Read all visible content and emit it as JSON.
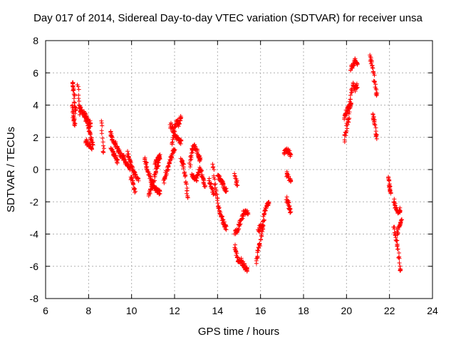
{
  "chart_data": {
    "type": "scatter",
    "title": "Day 017 of 2014, Sidereal Day-to-day VTEC variation (SDTVAR) for receiver unsa",
    "xlabel": "GPS time / hours",
    "ylabel": "SDTVAR / TECUs",
    "xlim": [
      6,
      24
    ],
    "ylim": [
      -8,
      8
    ],
    "x_ticks": [
      6,
      8,
      10,
      12,
      14,
      16,
      18,
      20,
      22,
      24
    ],
    "y_ticks": [
      -8,
      -6,
      -4,
      -2,
      0,
      2,
      4,
      6,
      8
    ],
    "grid": true,
    "marker": "plus",
    "color": "#ff0000",
    "segments": [
      {
        "x": [
          7.25,
          7.3,
          7.35,
          7.4
        ],
        "y": [
          5.4,
          5.0,
          4.0,
          3.6
        ]
      },
      {
        "x": [
          7.25,
          7.3,
          7.35
        ],
        "y": [
          3.9,
          3.2,
          2.8
        ]
      },
      {
        "x": [
          7.5,
          7.6
        ],
        "y": [
          5.3,
          3.5
        ]
      },
      {
        "x": [
          7.6,
          7.7,
          7.8,
          7.9,
          8.0,
          8.1
        ],
        "y": [
          3.8,
          3.6,
          3.3,
          3.1,
          3.0,
          2.8
        ]
      },
      {
        "x": [
          7.8,
          7.9,
          8.0,
          8.1,
          8.2
        ],
        "y": [
          3.6,
          3.3,
          2.6,
          2.0,
          1.6
        ]
      },
      {
        "x": [
          7.85,
          7.95,
          8.05,
          8.15
        ],
        "y": [
          1.8,
          1.6,
          1.5,
          1.4
        ]
      },
      {
        "x": [
          8.6,
          8.7
        ],
        "y": [
          3.0,
          1.2
        ]
      },
      {
        "x": [
          9.0,
          9.1,
          9.2,
          9.3,
          9.4,
          9.5,
          9.6
        ],
        "y": [
          2.3,
          2.0,
          1.7,
          1.4,
          1.2,
          0.9,
          0.7
        ]
      },
      {
        "x": [
          9.05,
          9.15,
          9.25,
          9.35
        ],
        "y": [
          1.3,
          1.0,
          0.8,
          0.5
        ]
      },
      {
        "x": [
          9.6,
          9.7,
          9.8,
          9.9
        ],
        "y": [
          0.8,
          0.5,
          0.3,
          0.0
        ]
      },
      {
        "x": [
          9.8,
          9.9,
          10.0,
          10.1,
          10.2,
          10.3
        ],
        "y": [
          1.0,
          0.6,
          0.2,
          -0.2,
          -0.4,
          -0.6
        ]
      },
      {
        "x": [
          9.95,
          10.05,
          10.15
        ],
        "y": [
          -0.4,
          -0.8,
          -1.3
        ]
      },
      {
        "x": [
          10.6,
          10.7,
          10.8,
          10.9,
          11.0,
          11.1,
          11.2,
          11.3
        ],
        "y": [
          0.7,
          0.2,
          -0.3,
          -0.7,
          -1.0,
          -1.2,
          -1.3,
          -1.4
        ]
      },
      {
        "x": [
          10.8,
          10.9,
          11.0,
          11.1,
          11.2,
          11.3
        ],
        "y": [
          -1.5,
          -1.2,
          -0.8,
          -0.3,
          0.2,
          0.7
        ]
      },
      {
        "x": [
          11.1,
          11.2,
          11.3
        ],
        "y": [
          0.4,
          0.6,
          0.8
        ]
      },
      {
        "x": [
          11.5,
          11.6,
          11.7,
          11.8,
          11.9,
          12.0
        ],
        "y": [
          -0.8,
          -0.3,
          0.2,
          0.6,
          1.0,
          1.2
        ]
      },
      {
        "x": [
          11.8,
          11.9,
          12.0,
          12.1,
          12.2,
          12.3
        ],
        "y": [
          2.8,
          2.5,
          2.2,
          2.0,
          1.8,
          1.7
        ]
      },
      {
        "x": [
          11.9,
          12.0,
          12.1,
          12.2,
          12.3
        ],
        "y": [
          1.5,
          2.5,
          3.0,
          2.8,
          3.3
        ]
      },
      {
        "x": [
          12.3,
          12.4,
          12.5,
          12.6
        ],
        "y": [
          0.7,
          0.3,
          -0.5,
          -1.7
        ]
      },
      {
        "x": [
          12.7,
          12.8,
          12.9,
          13.0,
          13.1,
          13.2
        ],
        "y": [
          0.2,
          1.0,
          1.5,
          1.3,
          0.9,
          0.6
        ]
      },
      {
        "x": [
          12.8,
          12.9,
          13.0,
          13.1,
          13.2,
          13.3,
          13.4
        ],
        "y": [
          -0.3,
          -0.5,
          -0.6,
          -0.2,
          0.0,
          -0.4,
          -1.0
        ]
      },
      {
        "x": [
          13.6,
          13.7,
          13.8
        ],
        "y": [
          -0.6,
          -1.0,
          -1.5
        ]
      },
      {
        "x": [
          13.8,
          13.9,
          14.0,
          14.1,
          14.2,
          14.3,
          14.4
        ],
        "y": [
          0.4,
          -1.2,
          -2.0,
          -2.6,
          -3.0,
          -3.4,
          -3.6
        ]
      },
      {
        "x": [
          14.0,
          14.1,
          14.2,
          14.3,
          14.4
        ],
        "y": [
          -0.3,
          -0.6,
          -0.8,
          -1.0,
          -1.3
        ]
      },
      {
        "x": [
          14.8,
          14.9,
          15.0,
          15.1,
          15.2,
          15.3,
          15.4
        ],
        "y": [
          -3.9,
          -3.8,
          -3.5,
          -3.0,
          -2.7,
          -2.6,
          -2.7
        ]
      },
      {
        "x": [
          14.8,
          14.9
        ],
        "y": [
          -0.3,
          -0.9
        ]
      },
      {
        "x": [
          14.8,
          14.9,
          15.0,
          15.1,
          15.2,
          15.3,
          15.4
        ],
        "y": [
          -4.8,
          -5.3,
          -5.8,
          -5.6,
          -5.9,
          -6.1,
          -6.2
        ]
      },
      {
        "x": [
          15.8,
          15.9,
          16.0,
          16.1,
          16.2,
          16.3,
          16.4
        ],
        "y": [
          -5.7,
          -5.0,
          -4.4,
          -3.4,
          -2.6,
          -2.2,
          -2.0
        ]
      },
      {
        "x": [
          15.9,
          16.0,
          16.1
        ],
        "y": [
          -3.8,
          -3.5,
          -3.6
        ]
      },
      {
        "x": [
          17.1,
          17.2,
          17.3,
          17.4
        ],
        "y": [
          1.0,
          1.2,
          1.1,
          0.9
        ]
      },
      {
        "x": [
          17.2,
          17.3,
          17.4
        ],
        "y": [
          -0.2,
          -0.5,
          -0.7
        ]
      },
      {
        "x": [
          17.2,
          17.3,
          17.4
        ],
        "y": [
          -1.8,
          -2.2,
          -2.6
        ]
      },
      {
        "x": [
          19.9,
          20.0,
          20.1,
          20.2,
          20.3,
          20.4,
          20.5
        ],
        "y": [
          1.8,
          2.6,
          3.3,
          4.5,
          5.3,
          5.0,
          5.2
        ]
      },
      {
        "x": [
          19.9,
          20.0,
          20.1,
          20.2
        ],
        "y": [
          3.2,
          3.6,
          3.8,
          4.2
        ]
      },
      {
        "x": [
          20.2,
          20.3,
          20.4,
          20.5
        ],
        "y": [
          6.2,
          6.5,
          6.8,
          6.6
        ]
      },
      {
        "x": [
          21.1,
          21.2,
          21.3,
          21.4
        ],
        "y": [
          7.0,
          6.5,
          5.5,
          4.6
        ]
      },
      {
        "x": [
          21.2,
          21.3,
          21.4
        ],
        "y": [
          3.4,
          3.0,
          2.0
        ]
      },
      {
        "x": [
          21.95,
          22.0,
          22.05
        ],
        "y": [
          -0.5,
          -1.0,
          -1.4
        ]
      },
      {
        "x": [
          22.2,
          22.3,
          22.4,
          22.5
        ],
        "y": [
          -1.9,
          -2.4,
          -2.6,
          -2.5
        ]
      },
      {
        "x": [
          22.2,
          22.3,
          22.4,
          22.5
        ],
        "y": [
          -3.5,
          -4.3,
          -5.0,
          -6.3
        ]
      },
      {
        "x": [
          22.35,
          22.45,
          22.55
        ],
        "y": [
          -4.0,
          -3.6,
          -3.2
        ]
      }
    ]
  }
}
